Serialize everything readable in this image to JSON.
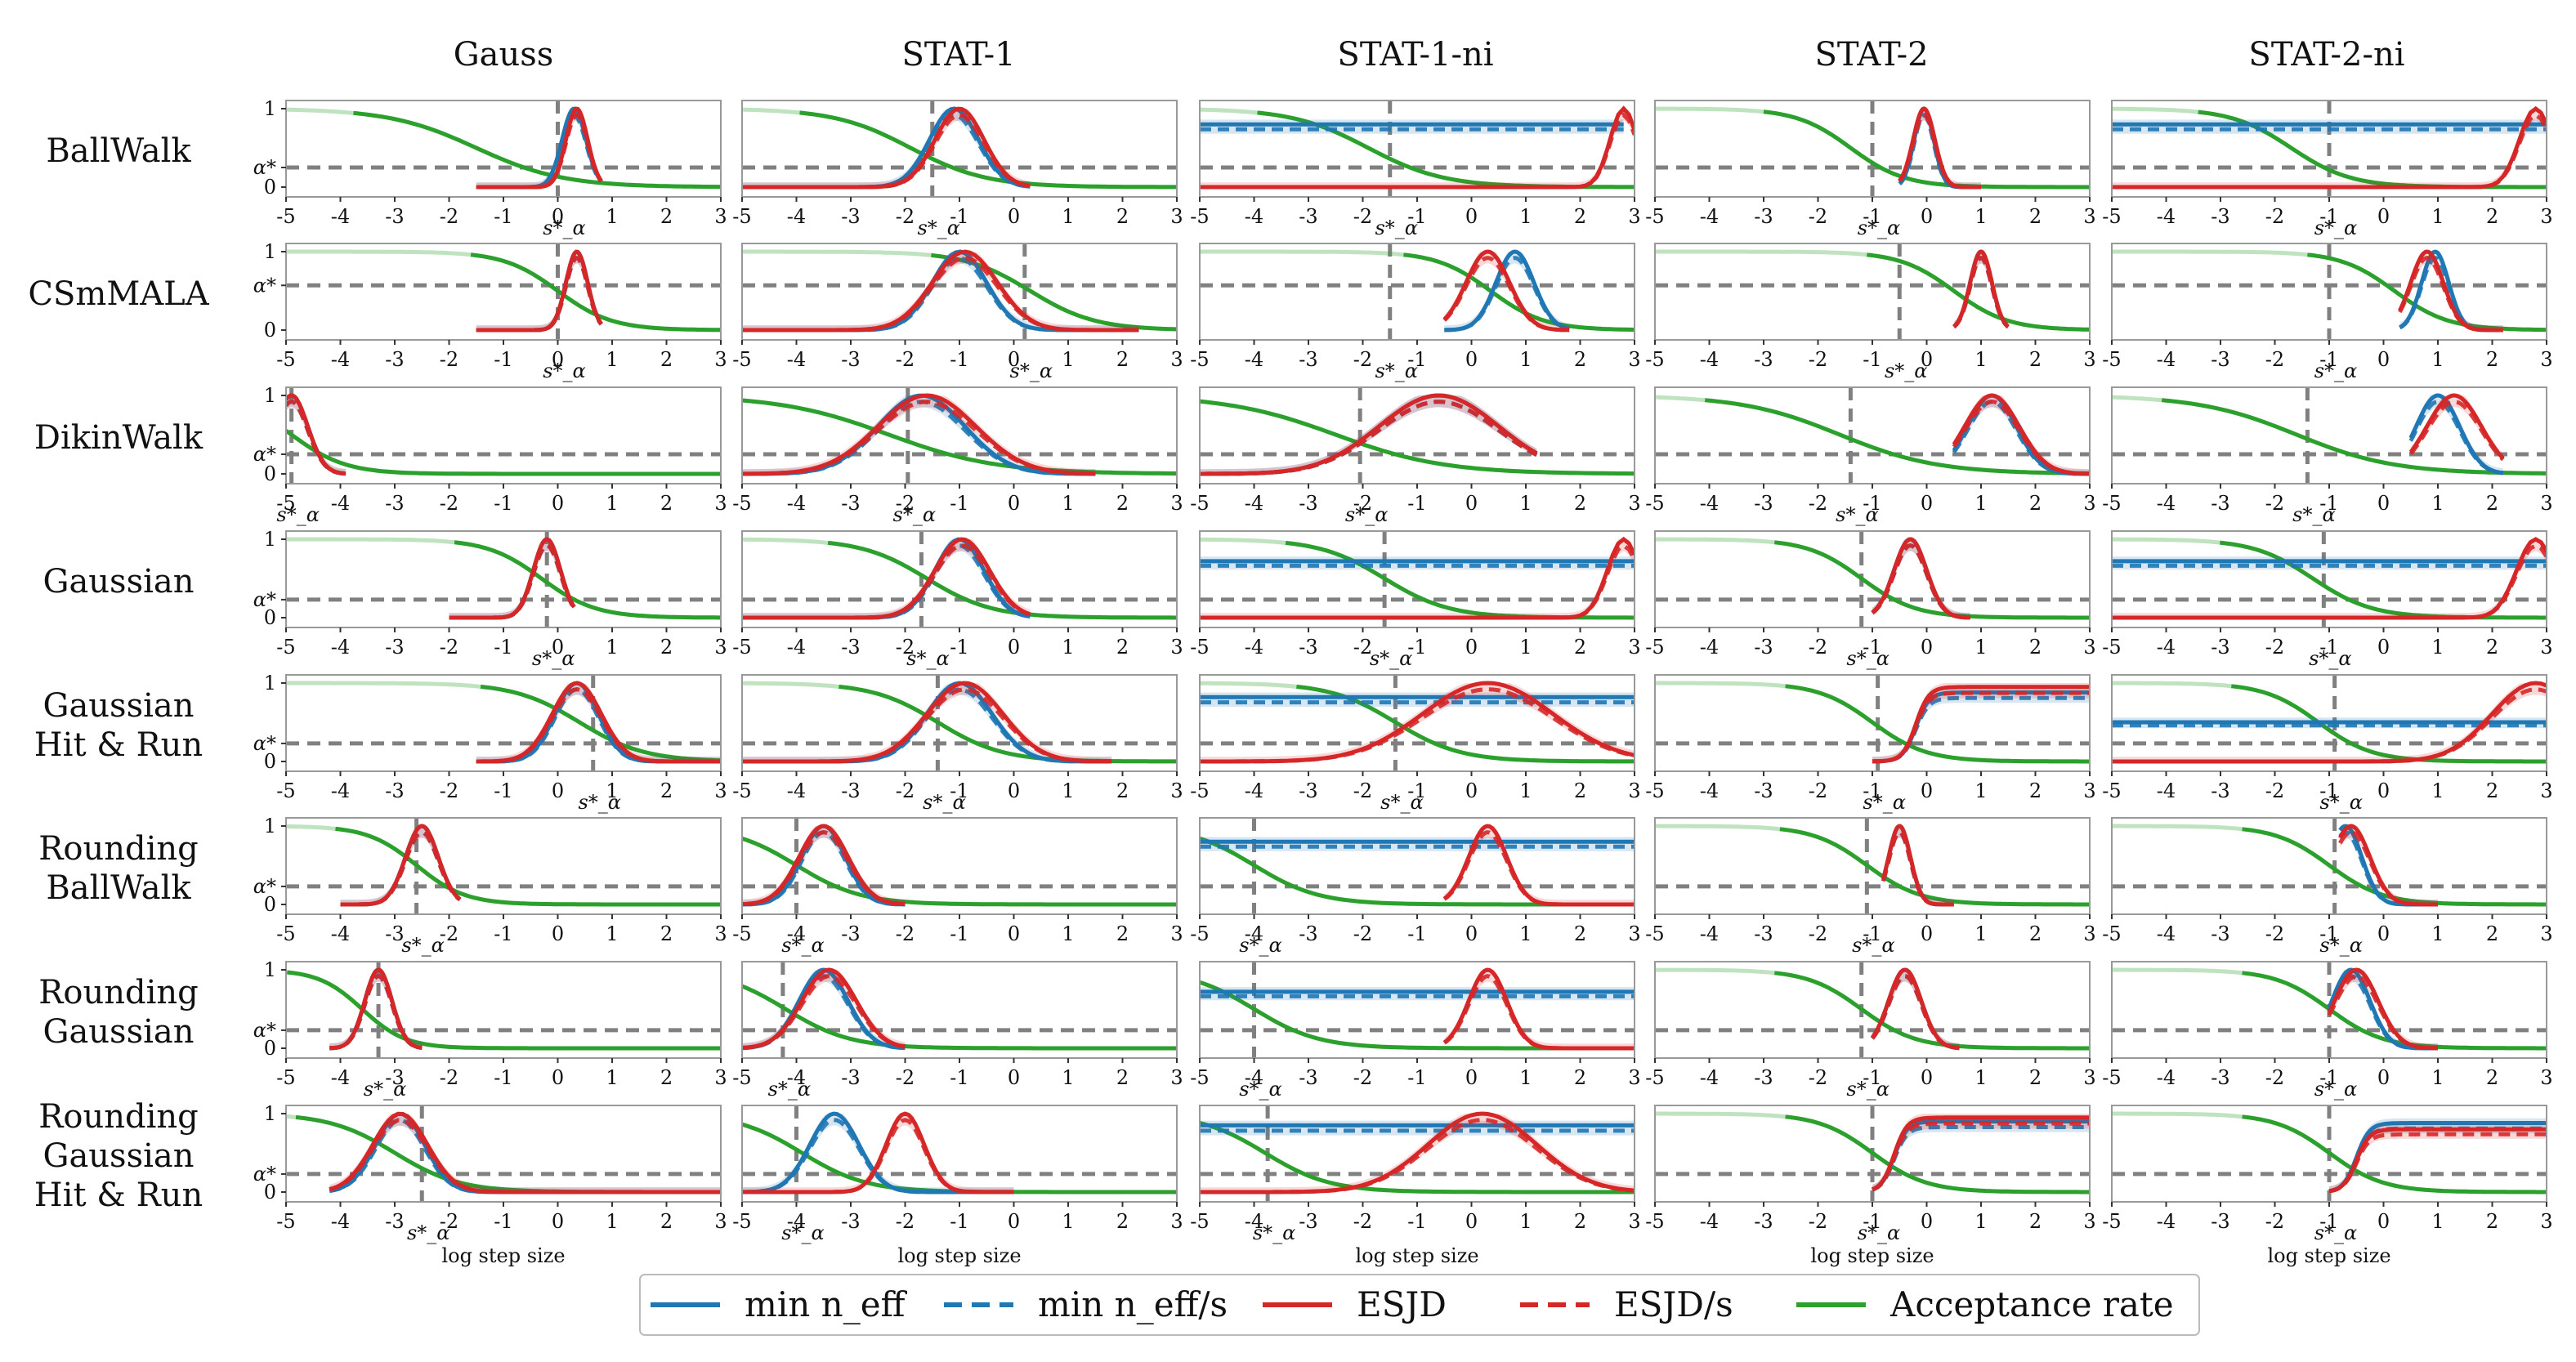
{
  "column_titles": [
    "Gauss",
    "STAT-1",
    "STAT-1-ni",
    "STAT-2",
    "STAT-2-ni"
  ],
  "row_labels": [
    [
      "BallWalk"
    ],
    [
      "CSmMALA"
    ],
    [
      "DikinWalk"
    ],
    [
      "Gaussian"
    ],
    [
      "Gaussian",
      "Hit & Run"
    ],
    [
      "Rounding",
      "BallWalk"
    ],
    [
      "Rounding",
      "Gaussian"
    ],
    [
      "Rounding",
      "Gaussian",
      "Hit & Run"
    ]
  ],
  "xlabel": "log step size",
  "legend": [
    {
      "label": "min n_eff",
      "color": "#1f77b4",
      "dash": false
    },
    {
      "label": "min n_eff/s",
      "color": "#1f77b4",
      "dash": true
    },
    {
      "label": "ESJD",
      "color": "#d62728",
      "dash": false
    },
    {
      "label": "ESJD/s",
      "color": "#d62728",
      "dash": true
    },
    {
      "label": "Acceptance rate",
      "color": "#2ca02c",
      "dash": false
    }
  ],
  "colors": {
    "blue": "#1f77b4",
    "red": "#d62728",
    "green": "#2ca02c",
    "ref_line": "#808080",
    "frame": "#999999"
  },
  "chart_data": {
    "type": "line",
    "layout": "grid 8 rows x 5 columns of small multiples",
    "xlim": [
      -5,
      3
    ],
    "xticks": [
      -5,
      -4,
      -3,
      -2,
      -1,
      0,
      1,
      2,
      3
    ],
    "ylim": [
      0,
      1
    ],
    "yticks": [
      "0",
      "α*",
      "1"
    ],
    "alpha_star_by_row": [
      0.25,
      0.57,
      0.25,
      0.23,
      0.23,
      0.23,
      0.23,
      0.23
    ],
    "reference_label": "s*_α",
    "reference_lines": [
      [
        0.0,
        -1.5,
        -1.5,
        -1.0,
        -1.0
      ],
      [
        0.0,
        0.2,
        -1.5,
        -0.5,
        -1.0
      ],
      [
        -4.9,
        -1.95,
        -2.05,
        -1.4,
        -1.4
      ],
      [
        -0.2,
        -1.7,
        -1.6,
        -1.2,
        -1.1
      ],
      [
        0.65,
        -1.4,
        -1.4,
        -0.9,
        -0.9
      ],
      [
        -2.6,
        -4.0,
        -4.0,
        -1.1,
        -0.9
      ],
      [
        -3.3,
        -4.25,
        -4.0,
        -1.2,
        -1.0
      ],
      [
        -2.5,
        -4.0,
        -3.75,
        -1.0,
        -1.0
      ]
    ],
    "series": [
      "min n_eff (normalized)",
      "min n_eff/s (normalized)",
      "ESJD (normalized)",
      "ESJD/s (normalized)",
      "Acceptance rate"
    ],
    "panels": [
      [
        {
          "acc": [
            -1.5,
            0.8
          ],
          "blue": {
            "peak": 0.3,
            "w": 0.22,
            "range": [
              -1.5,
              0.8
            ]
          },
          "red": {
            "peak": 0.35,
            "w": 0.2,
            "range": [
              -1.5,
              0.8
            ]
          }
        },
        {
          "acc": [
            -1.9,
            0.7
          ],
          "blue": {
            "peak": -1.1,
            "w": 0.45,
            "range": [
              -5,
              0.3
            ]
          },
          "red": {
            "peak": -1.0,
            "w": 0.45,
            "range": [
              -5,
              0.3
            ]
          }
        },
        {
          "acc": [
            -1.9,
            0.7
          ],
          "blue": {
            "flat": 0.8,
            "range": [
              -5,
              2.8
            ]
          },
          "red": {
            "peak": 2.8,
            "w": 0.25,
            "range": [
              -5,
              3
            ]
          }
        },
        {
          "acc": [
            -1.4,
            0.5
          ],
          "blue": {
            "peak": -0.05,
            "w": 0.18,
            "range": [
              -0.5,
              1.0
            ]
          },
          "red": {
            "peak": -0.05,
            "w": 0.2,
            "range": [
              -0.5,
              1.0
            ]
          }
        },
        {
          "acc": [
            -1.7,
            0.55
          ],
          "blue": {
            "flat": 0.8,
            "range": [
              -5,
              3
            ]
          },
          "red": {
            "peak": 2.8,
            "w": 0.3,
            "range": [
              -5,
              3
            ]
          }
        }
      ],
      [
        {
          "acc": [
            0.0,
            0.5
          ],
          "blue": {
            "peak": 0.35,
            "w": 0.2,
            "range": [
              -1.5,
              0.8
            ]
          },
          "red": {
            "peak": 0.35,
            "w": 0.2,
            "range": [
              -1.5,
              0.8
            ]
          }
        },
        {
          "acc": [
            0.3,
            0.6
          ],
          "blue": {
            "peak": -1.0,
            "w": 0.5,
            "range": [
              -5,
              2.3
            ]
          },
          "red": {
            "peak": -0.9,
            "w": 0.6,
            "range": [
              -5,
              2.3
            ]
          }
        },
        {
          "acc": [
            0.35,
            0.5
          ],
          "blue": {
            "peak": 0.8,
            "w": 0.35,
            "range": [
              -0.5,
              1.8
            ]
          },
          "red": {
            "peak": 0.3,
            "w": 0.4,
            "range": [
              -0.5,
              1.8
            ]
          }
        },
        {
          "acc": [
            0.5,
            0.5
          ],
          "blue": {
            "peak": 1.0,
            "w": 0.2,
            "range": [
              0.5,
              1.5
            ]
          },
          "red": {
            "peak": 1.0,
            "w": 0.2,
            "range": [
              0.5,
              1.5
            ]
          }
        },
        {
          "acc": [
            0.2,
            0.5
          ],
          "blue": {
            "peak": 0.95,
            "w": 0.25,
            "range": [
              0.3,
              2.2
            ]
          },
          "red": {
            "peak": 0.8,
            "w": 0.3,
            "range": [
              0.3,
              2.2
            ]
          }
        }
      ],
      [
        {
          "acc": [
            -4.9,
            0.5
          ],
          "blue": {
            "peak": -4.9,
            "w": 0.3,
            "range": [
              -5,
              -3.9
            ]
          },
          "red": {
            "peak": -4.9,
            "w": 0.3,
            "range": [
              -5,
              -3.9
            ]
          }
        },
        {
          "acc": [
            -2.3,
            1.0
          ],
          "blue": {
            "peak": -1.7,
            "w": 0.8,
            "range": [
              -5,
              1.5
            ]
          },
          "red": {
            "peak": -1.6,
            "w": 0.9,
            "range": [
              -5,
              1.5
            ]
          }
        },
        {
          "acc": [
            -2.5,
            1.0
          ],
          "blue": {
            "peak": -0.6,
            "w": 1.1,
            "range": [
              -5,
              1.2
            ]
          },
          "red": {
            "peak": -0.6,
            "w": 1.1,
            "range": [
              -5,
              1.2
            ]
          }
        },
        {
          "acc": [
            -1.6,
            0.9
          ],
          "blue": {
            "peak": 1.2,
            "w": 0.45,
            "range": [
              0.5,
              3
            ]
          },
          "red": {
            "peak": 1.2,
            "w": 0.5,
            "range": [
              0.5,
              3
            ]
          }
        },
        {
          "acc": [
            -1.6,
            0.9
          ],
          "blue": {
            "peak": 1.0,
            "w": 0.4,
            "range": [
              0.5,
              2.2
            ]
          },
          "red": {
            "peak": 1.3,
            "w": 0.5,
            "range": [
              0.5,
              2.2
            ]
          }
        }
      ],
      [
        {
          "acc": [
            -0.3,
            0.5
          ],
          "blue": {
            "peak": -0.2,
            "w": 0.25,
            "range": [
              -2,
              0.3
            ]
          },
          "red": {
            "peak": -0.2,
            "w": 0.25,
            "range": [
              -2,
              0.3
            ]
          }
        },
        {
          "acc": [
            -1.6,
            0.6
          ],
          "blue": {
            "peak": -1.0,
            "w": 0.45,
            "range": [
              -5,
              0.3
            ]
          },
          "red": {
            "peak": -0.95,
            "w": 0.5,
            "range": [
              -5,
              0.3
            ]
          }
        },
        {
          "acc": [
            -1.6,
            0.6
          ],
          "blue": {
            "flat": 0.72,
            "range": [
              -5,
              3
            ]
          },
          "red": {
            "peak": 2.8,
            "w": 0.3,
            "range": [
              -5,
              3
            ]
          }
        },
        {
          "acc": [
            -1.2,
            0.5
          ],
          "blue": {
            "peak": -0.3,
            "w": 0.3,
            "range": [
              -1.0,
              0.8
            ]
          },
          "red": {
            "peak": -0.3,
            "w": 0.3,
            "range": [
              -1.0,
              0.8
            ]
          }
        },
        {
          "acc": [
            -1.3,
            0.55
          ],
          "blue": {
            "flat": 0.72,
            "range": [
              -5,
              3
            ]
          },
          "red": {
            "peak": 2.8,
            "w": 0.35,
            "range": [
              -5,
              3
            ]
          }
        }
      ],
      [
        {
          "acc": [
            0.4,
            0.6
          ],
          "blue": {
            "peak": 0.35,
            "w": 0.4,
            "range": [
              -1.5,
              3
            ]
          },
          "red": {
            "peak": 0.35,
            "w": 0.45,
            "range": [
              -1.5,
              3
            ]
          }
        },
        {
          "acc": [
            -1.4,
            0.6
          ],
          "blue": {
            "peak": -1.0,
            "w": 0.6,
            "range": [
              -5,
              1.8
            ]
          },
          "red": {
            "peak": -0.9,
            "w": 0.7,
            "range": [
              -5,
              1.8
            ]
          }
        },
        {
          "acc": [
            -1.4,
            0.6
          ],
          "blue": {
            "flat": 0.82,
            "range": [
              -5,
              3
            ]
          },
          "red": {
            "peak": 0.3,
            "w": 1.2,
            "range": [
              -5,
              3
            ]
          }
        },
        {
          "acc": [
            -1.0,
            0.5
          ],
          "blue": {
            "plateau": 0.88,
            "from": -0.2,
            "range": [
              -1.0,
              3
            ]
          },
          "red": {
            "plateau": 0.95,
            "from": -0.2,
            "range": [
              -1.0,
              3
            ]
          }
        },
        {
          "acc": [
            -1.2,
            0.5
          ],
          "blue": {
            "flat": 0.5,
            "range": [
              -5,
              3
            ]
          },
          "red": {
            "peak": 2.8,
            "w": 0.8,
            "range": [
              -5,
              3
            ]
          }
        }
      ],
      [
        {
          "acc": [
            -2.6,
            0.45
          ],
          "blue": {
            "peak": -2.5,
            "w": 0.3,
            "range": [
              -4,
              -1.8
            ]
          },
          "red": {
            "peak": -2.5,
            "w": 0.3,
            "range": [
              -4,
              -1.8
            ]
          }
        },
        {
          "acc": [
            -4.0,
            0.6
          ],
          "blue": {
            "peak": -3.5,
            "w": 0.4,
            "range": [
              -5,
              -2
            ]
          },
          "red": {
            "peak": -3.5,
            "w": 0.45,
            "range": [
              -5,
              -2
            ]
          }
        },
        {
          "acc": [
            -4.0,
            0.6
          ],
          "blue": {
            "flat": 0.8,
            "range": [
              -5,
              3
            ]
          },
          "red": {
            "peak": 0.3,
            "w": 0.35,
            "range": [
              -0.5,
              3
            ]
          }
        },
        {
          "acc": [
            -1.1,
            0.5
          ],
          "blue": {
            "peak": -0.5,
            "w": 0.2,
            "range": [
              -0.8,
              0.5
            ]
          },
          "red": {
            "peak": -0.5,
            "w": 0.2,
            "range": [
              -0.8,
              0.5
            ]
          }
        },
        {
          "acc": [
            -1.0,
            0.5
          ],
          "blue": {
            "peak": -0.7,
            "w": 0.3,
            "range": [
              -0.8,
              1
            ]
          },
          "red": {
            "peak": -0.6,
            "w": 0.35,
            "range": [
              -0.8,
              1
            ]
          }
        }
      ],
      [
        {
          "acc": [
            -3.6,
            0.4
          ],
          "blue": {
            "peak": -3.3,
            "w": 0.25,
            "range": [
              -4.2,
              -2.5
            ]
          },
          "red": {
            "peak": -3.3,
            "w": 0.25,
            "range": [
              -4.2,
              -2.5
            ]
          }
        },
        {
          "acc": [
            -4.2,
            0.6
          ],
          "blue": {
            "peak": -3.5,
            "w": 0.45,
            "range": [
              -5,
              -2
            ]
          },
          "red": {
            "peak": -3.4,
            "w": 0.5,
            "range": [
              -5,
              -2
            ]
          }
        },
        {
          "acc": [
            -4.0,
            0.6
          ],
          "blue": {
            "flat": 0.72,
            "range": [
              -5,
              3
            ]
          },
          "red": {
            "peak": 0.3,
            "w": 0.35,
            "range": [
              -0.5,
              3
            ]
          }
        },
        {
          "acc": [
            -1.2,
            0.5
          ],
          "blue": {
            "peak": -0.4,
            "w": 0.3,
            "range": [
              -1.0,
              0.6
            ]
          },
          "red": {
            "peak": -0.4,
            "w": 0.3,
            "range": [
              -1.0,
              0.6
            ]
          }
        },
        {
          "acc": [
            -1.0,
            0.5
          ],
          "blue": {
            "peak": -0.6,
            "w": 0.35,
            "range": [
              -1.0,
              1
            ]
          },
          "red": {
            "peak": -0.5,
            "w": 0.4,
            "range": [
              -1.0,
              1
            ]
          }
        }
      ],
      [
        {
          "acc": [
            -3.0,
            0.6
          ],
          "blue": {
            "peak": -2.9,
            "w": 0.45,
            "range": [
              -4.2,
              3
            ]
          },
          "red": {
            "peak": -2.9,
            "w": 0.5,
            "range": [
              -4.2,
              3
            ]
          }
        },
        {
          "acc": [
            -3.9,
            0.6
          ],
          "blue": {
            "peak": -3.3,
            "w": 0.45,
            "range": [
              -5,
              0
            ]
          },
          "red": {
            "peak": -2.0,
            "w": 0.35,
            "range": [
              -5,
              0
            ]
          }
        },
        {
          "acc": [
            -3.8,
            0.6
          ],
          "blue": {
            "flat": 0.85,
            "range": [
              -5,
              3
            ]
          },
          "red": {
            "peak": 0.2,
            "w": 1.0,
            "range": [
              -5,
              3
            ]
          }
        },
        {
          "acc": [
            -1.0,
            0.5
          ],
          "blue": {
            "plateau": 0.9,
            "from": -0.6,
            "range": [
              -1.0,
              3
            ]
          },
          "red": {
            "plateau": 0.95,
            "from": -0.6,
            "range": [
              -1.0,
              3
            ]
          }
        },
        {
          "acc": [
            -1.0,
            0.5
          ],
          "blue": {
            "plateau": 0.88,
            "from": -0.5,
            "range": [
              -1.0,
              3
            ]
          },
          "red": {
            "plateau": 0.8,
            "from": -0.5,
            "range": [
              -1.0,
              3
            ]
          }
        }
      ]
    ]
  }
}
